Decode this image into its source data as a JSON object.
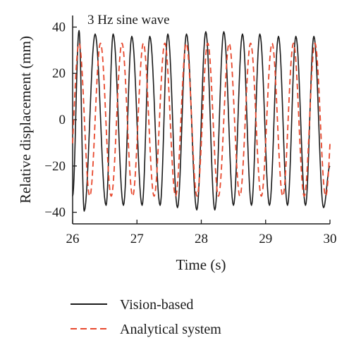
{
  "chart_data": {
    "type": "line",
    "annotation": "3 Hz sine wave",
    "xlabel": "Time (s)",
    "ylabel": "Relative displacement (mm)",
    "xlim": [
      26,
      30
    ],
    "ylim": [
      -45,
      45
    ],
    "xticks": [
      26,
      27,
      28,
      29,
      30
    ],
    "xtick_labels": [
      "26",
      "27",
      "28",
      "29",
      "30"
    ],
    "yticks": [
      40,
      20,
      0,
      -20,
      -40
    ],
    "ytick_labels": [
      "40",
      "20",
      "0",
      "−20",
      "−40"
    ],
    "grid": false,
    "legend_position": "bottom",
    "series": [
      {
        "name": "Vision-based",
        "color": "#1a1a1a",
        "style": "solid",
        "frequency_hz": 3,
        "peaks": [
          [
            26.1,
            38.5
          ],
          [
            26.18,
            -39.5
          ],
          [
            26.35,
            37
          ],
          [
            26.52,
            -37
          ],
          [
            26.63,
            37
          ],
          [
            26.79,
            -37
          ],
          [
            26.92,
            36
          ],
          [
            27.08,
            -37
          ],
          [
            27.2,
            36
          ],
          [
            27.36,
            -37
          ],
          [
            27.48,
            37
          ],
          [
            27.63,
            -38
          ],
          [
            27.77,
            37
          ],
          [
            27.93,
            -39
          ],
          [
            28.07,
            38
          ],
          [
            28.21,
            -39
          ],
          [
            28.35,
            38
          ],
          [
            28.5,
            -37
          ],
          [
            28.64,
            37
          ],
          [
            28.78,
            -37
          ],
          [
            28.91,
            37
          ],
          [
            29.06,
            -37
          ],
          [
            29.2,
            36
          ],
          [
            29.34,
            -37
          ],
          [
            29.47,
            36
          ],
          [
            29.62,
            -37
          ],
          [
            29.75,
            36
          ],
          [
            29.9,
            -38
          ]
        ],
        "end": [
          30.0,
          -20
        ]
      },
      {
        "name": "Analytical system",
        "color": "#e8482d",
        "style": "dashed",
        "frequency_hz": 3,
        "amplitude": 33
      }
    ]
  }
}
